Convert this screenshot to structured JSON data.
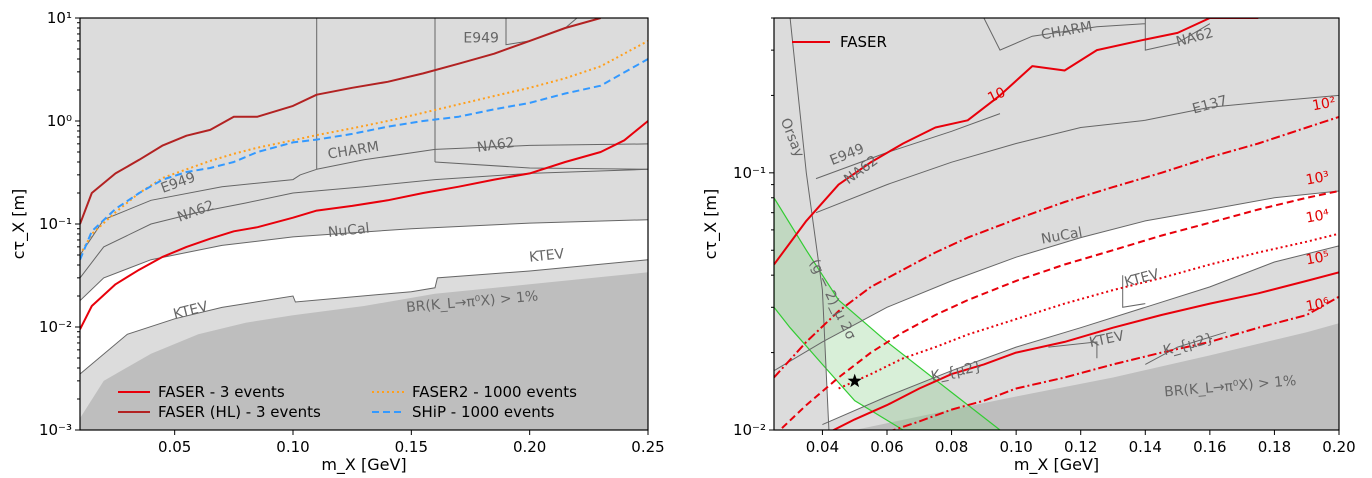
{
  "chart_data": [
    {
      "type": "line",
      "xlabel": "m_X [GeV]",
      "ylabel": "cτ_X [m]",
      "xlim": [
        0.01,
        0.25
      ],
      "ylim": [
        0.001,
        10
      ],
      "yscale": "log",
      "xticks": [
        "0.05",
        "0.10",
        "0.15",
        "0.20",
        "0.25"
      ],
      "yticks": [
        "10⁻³",
        "10⁻²",
        "10⁻¹",
        "10⁰",
        "10¹"
      ],
      "legend_position": "bottom-center",
      "colors": {
        "excluded": "#dcdcdc",
        "br_region": "#bebebe",
        "faser": "#e8000b",
        "faser_hl": "#b22222",
        "faser2": "#ff9f1c",
        "ship": "#3399ff",
        "boundary": "#666666"
      },
      "region_labels": [
        "E949",
        "CHARM",
        "NA62",
        "E949",
        "NA62",
        "NuCal",
        "KTEV",
        "KTEV",
        "BR(K_L→π⁰X) > 1%"
      ],
      "series": [
        {
          "name": "FASER - 3 events",
          "style": "solid",
          "color": "#e8000b",
          "x": [
            0.01,
            0.015,
            0.025,
            0.035,
            0.045,
            0.055,
            0.065,
            0.075,
            0.085,
            0.1,
            0.11,
            0.125,
            0.14,
            0.155,
            0.17,
            0.185,
            0.2,
            0.215,
            0.23,
            0.24,
            0.25
          ],
          "y": [
            0.0095,
            0.016,
            0.026,
            0.036,
            0.048,
            0.06,
            0.072,
            0.085,
            0.093,
            0.115,
            0.135,
            0.15,
            0.17,
            0.2,
            0.23,
            0.27,
            0.31,
            0.4,
            0.5,
            0.65,
            1.0
          ]
        },
        {
          "name": "FASER (HL) - 3 events",
          "style": "solid",
          "color": "#b22222",
          "x": [
            0.01,
            0.015,
            0.025,
            0.035,
            0.045,
            0.055,
            0.065,
            0.075,
            0.085,
            0.1,
            0.11,
            0.125,
            0.14,
            0.155,
            0.17,
            0.185,
            0.2,
            0.215,
            0.23
          ],
          "y": [
            0.1,
            0.2,
            0.31,
            0.42,
            0.58,
            0.72,
            0.82,
            1.1,
            1.1,
            1.4,
            1.8,
            2.1,
            2.4,
            2.9,
            3.6,
            4.5,
            6.0,
            8.0,
            10.0
          ]
        },
        {
          "name": "FASER2 - 1000 events",
          "style": "dotted",
          "color": "#ff9f1c",
          "x": [
            0.01,
            0.015,
            0.025,
            0.035,
            0.045,
            0.055,
            0.065,
            0.075,
            0.085,
            0.1,
            0.11,
            0.125,
            0.14,
            0.155,
            0.17,
            0.185,
            0.2,
            0.215,
            0.23,
            0.25
          ],
          "y": [
            0.05,
            0.08,
            0.13,
            0.2,
            0.28,
            0.34,
            0.41,
            0.48,
            0.55,
            0.65,
            0.73,
            0.85,
            1.0,
            1.2,
            1.45,
            1.75,
            2.1,
            2.6,
            3.4,
            6.0
          ]
        },
        {
          "name": "SHiP - 1000 events",
          "style": "dashed",
          "color": "#3399ff",
          "x": [
            0.01,
            0.015,
            0.025,
            0.035,
            0.045,
            0.055,
            0.065,
            0.075,
            0.085,
            0.1,
            0.11,
            0.125,
            0.14,
            0.155,
            0.17,
            0.185,
            0.2,
            0.215,
            0.23,
            0.25
          ],
          "y": [
            0.045,
            0.085,
            0.14,
            0.2,
            0.27,
            0.32,
            0.35,
            0.4,
            0.5,
            0.62,
            0.66,
            0.75,
            0.88,
            1.0,
            1.1,
            1.3,
            1.5,
            1.85,
            2.2,
            4.0
          ]
        }
      ]
    },
    {
      "type": "line",
      "xlabel": "m_X [GeV]",
      "ylabel": "cτ_X [m]",
      "xlim": [
        0.025,
        0.2
      ],
      "ylim": [
        0.01,
        0.4
      ],
      "yscale": "log",
      "xticks": [
        "0.04",
        "0.06",
        "0.08",
        "0.10",
        "0.12",
        "0.14",
        "0.16",
        "0.18",
        "0.20"
      ],
      "yticks": [
        "10⁻²",
        "10⁻¹"
      ],
      "legend_position": "top-left",
      "marker": {
        "x": 0.05,
        "y": 0.0155,
        "symbol": "star"
      },
      "region_labels": [
        "CHARM",
        "NA62",
        "Orsay",
        "E949",
        "NA62",
        "E137",
        "NuCal",
        "KTEV",
        "KTEV",
        "K_{μ2}",
        "K_{μ2}",
        "(g − 2)_μ 2σ",
        "BR(K_L→π⁰X) > 1%"
      ],
      "contour_labels": [
        "10",
        "10²",
        "10³",
        "10⁴",
        "10⁵",
        "10⁶"
      ],
      "series": [
        {
          "name": "FASER",
          "style": "solid",
          "color": "#e8000b",
          "x": [
            0.025,
            0.035,
            0.045,
            0.055,
            0.065,
            0.075,
            0.085,
            0.095,
            0.105,
            0.115,
            0.125,
            0.14,
            0.15,
            0.16,
            0.175
          ],
          "y": [
            0.044,
            0.065,
            0.09,
            0.11,
            0.13,
            0.15,
            0.16,
            0.2,
            0.26,
            0.25,
            0.3,
            0.33,
            0.35,
            0.4,
            0.4
          ]
        },
        {
          "name": "10²",
          "style": "dashdot",
          "color": "#e8000b",
          "x": [
            0.025,
            0.035,
            0.045,
            0.055,
            0.065,
            0.075,
            0.085,
            0.1,
            0.115,
            0.13,
            0.145,
            0.16,
            0.175,
            0.19,
            0.2
          ],
          "y": [
            0.016,
            0.022,
            0.029,
            0.036,
            0.042,
            0.049,
            0.056,
            0.066,
            0.077,
            0.088,
            0.1,
            0.115,
            0.13,
            0.15,
            0.165
          ]
        },
        {
          "name": "10³",
          "style": "dashed",
          "color": "#e8000b",
          "x": [
            0.025,
            0.035,
            0.045,
            0.055,
            0.065,
            0.075,
            0.085,
            0.1,
            0.115,
            0.13,
            0.145,
            0.16,
            0.175,
            0.19,
            0.2
          ],
          "y": [
            0.0095,
            0.0125,
            0.016,
            0.02,
            0.024,
            0.028,
            0.032,
            0.038,
            0.044,
            0.05,
            0.057,
            0.064,
            0.072,
            0.08,
            0.085
          ]
        },
        {
          "name": "10⁴",
          "style": "dotted",
          "color": "#e8000b",
          "x": [
            0.045,
            0.055,
            0.065,
            0.075,
            0.085,
            0.1,
            0.115,
            0.13,
            0.145,
            0.16,
            0.175,
            0.19,
            0.2
          ],
          "y": [
            0.0145,
            0.0165,
            0.019,
            0.021,
            0.0235,
            0.027,
            0.031,
            0.035,
            0.039,
            0.044,
            0.049,
            0.054,
            0.058
          ]
        },
        {
          "name": "10⁵",
          "style": "solid",
          "color": "#e8000b",
          "x": [
            0.04,
            0.05,
            0.06,
            0.07,
            0.08,
            0.09,
            0.1,
            0.115,
            0.13,
            0.145,
            0.16,
            0.175,
            0.19,
            0.2
          ],
          "y": [
            0.0095,
            0.011,
            0.0125,
            0.0145,
            0.0165,
            0.018,
            0.02,
            0.022,
            0.025,
            0.028,
            0.031,
            0.034,
            0.038,
            0.041
          ]
        },
        {
          "name": "10⁶",
          "style": "dashdot",
          "color": "#e8000b",
          "x": [
            0.06,
            0.07,
            0.08,
            0.09,
            0.1,
            0.115,
            0.13,
            0.145,
            0.16,
            0.175,
            0.19,
            0.2
          ],
          "y": [
            0.0098,
            0.0108,
            0.012,
            0.013,
            0.0145,
            0.016,
            0.018,
            0.02,
            0.022,
            0.025,
            0.028,
            0.033
          ]
        }
      ]
    }
  ],
  "left_legend": [
    "FASER - 3 events",
    "FASER (HL) - 3 events",
    "FASER2 - 1000 events",
    "SHiP - 1000 events"
  ],
  "right_legend": [
    "FASER"
  ]
}
